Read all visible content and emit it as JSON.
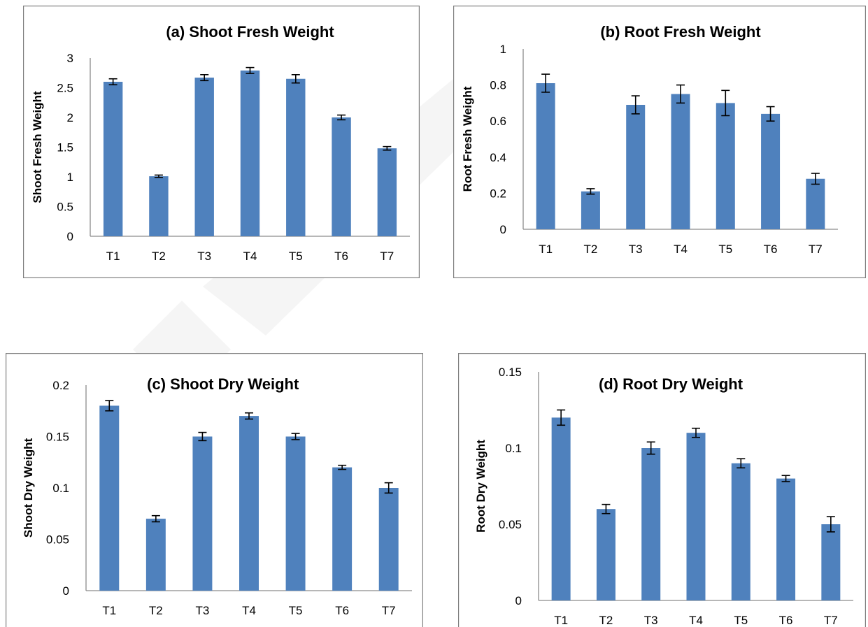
{
  "chart_data": [
    {
      "type": "bar",
      "title": "(a) Shoot Fresh Weight",
      "xlabel": "",
      "ylabel": "Shoot Fresh Weight",
      "categories": [
        "T1",
        "T2",
        "T3",
        "T4",
        "T5",
        "T6",
        "T7"
      ],
      "values": [
        2.6,
        1.01,
        2.67,
        2.79,
        2.65,
        2.0,
        1.48
      ],
      "errors": [
        0.05,
        0.02,
        0.05,
        0.05,
        0.07,
        0.04,
        0.03
      ],
      "ylim": [
        0,
        3
      ],
      "yticks": [
        "0",
        "0.5",
        "1",
        "1.5",
        "2",
        "2.5",
        "3"
      ],
      "grid": false,
      "legend": "none",
      "bar_color": "#4f81bd"
    },
    {
      "type": "bar",
      "title": "(b) Root Fresh Weight",
      "xlabel": "",
      "ylabel": "Root Fresh Weight",
      "categories": [
        "T1",
        "T2",
        "T3",
        "T4",
        "T5",
        "T6",
        "T7"
      ],
      "values": [
        0.81,
        0.21,
        0.69,
        0.75,
        0.7,
        0.64,
        0.28
      ],
      "errors": [
        0.05,
        0.015,
        0.05,
        0.05,
        0.07,
        0.04,
        0.03
      ],
      "ylim": [
        0,
        1
      ],
      "yticks": [
        "0",
        "0.2",
        "0.4",
        "0.6",
        "0.8",
        "1"
      ],
      "grid": false,
      "legend": "none",
      "bar_color": "#4f81bd"
    },
    {
      "type": "bar",
      "title": "(c) Shoot Dry Weight",
      "xlabel": "",
      "ylabel": "Shoot Dry Weight",
      "categories": [
        "T1",
        "T2",
        "T3",
        "T4",
        "T5",
        "T6",
        "T7"
      ],
      "values": [
        0.18,
        0.07,
        0.15,
        0.17,
        0.15,
        0.12,
        0.1
      ],
      "errors": [
        0.005,
        0.003,
        0.004,
        0.003,
        0.003,
        0.002,
        0.005
      ],
      "ylim": [
        0,
        0.2
      ],
      "yticks": [
        "0",
        "0.05",
        "0.1",
        "0.15",
        "0.2"
      ],
      "grid": false,
      "legend": "none",
      "bar_color": "#4f81bd"
    },
    {
      "type": "bar",
      "title": "(d) Root Dry Weight",
      "xlabel": "",
      "ylabel": "Root Dry Weight",
      "categories": [
        "T1",
        "T2",
        "T3",
        "T4",
        "T5",
        "T6",
        "T7"
      ],
      "values": [
        0.12,
        0.06,
        0.1,
        0.11,
        0.09,
        0.08,
        0.05
      ],
      "errors": [
        0.005,
        0.003,
        0.004,
        0.003,
        0.003,
        0.002,
        0.005
      ],
      "ylim": [
        0,
        0.15
      ],
      "yticks": [
        "0",
        "0.05",
        "0.1",
        "0.15"
      ],
      "grid": false,
      "legend": "none",
      "bar_color": "#4f81bd"
    }
  ]
}
